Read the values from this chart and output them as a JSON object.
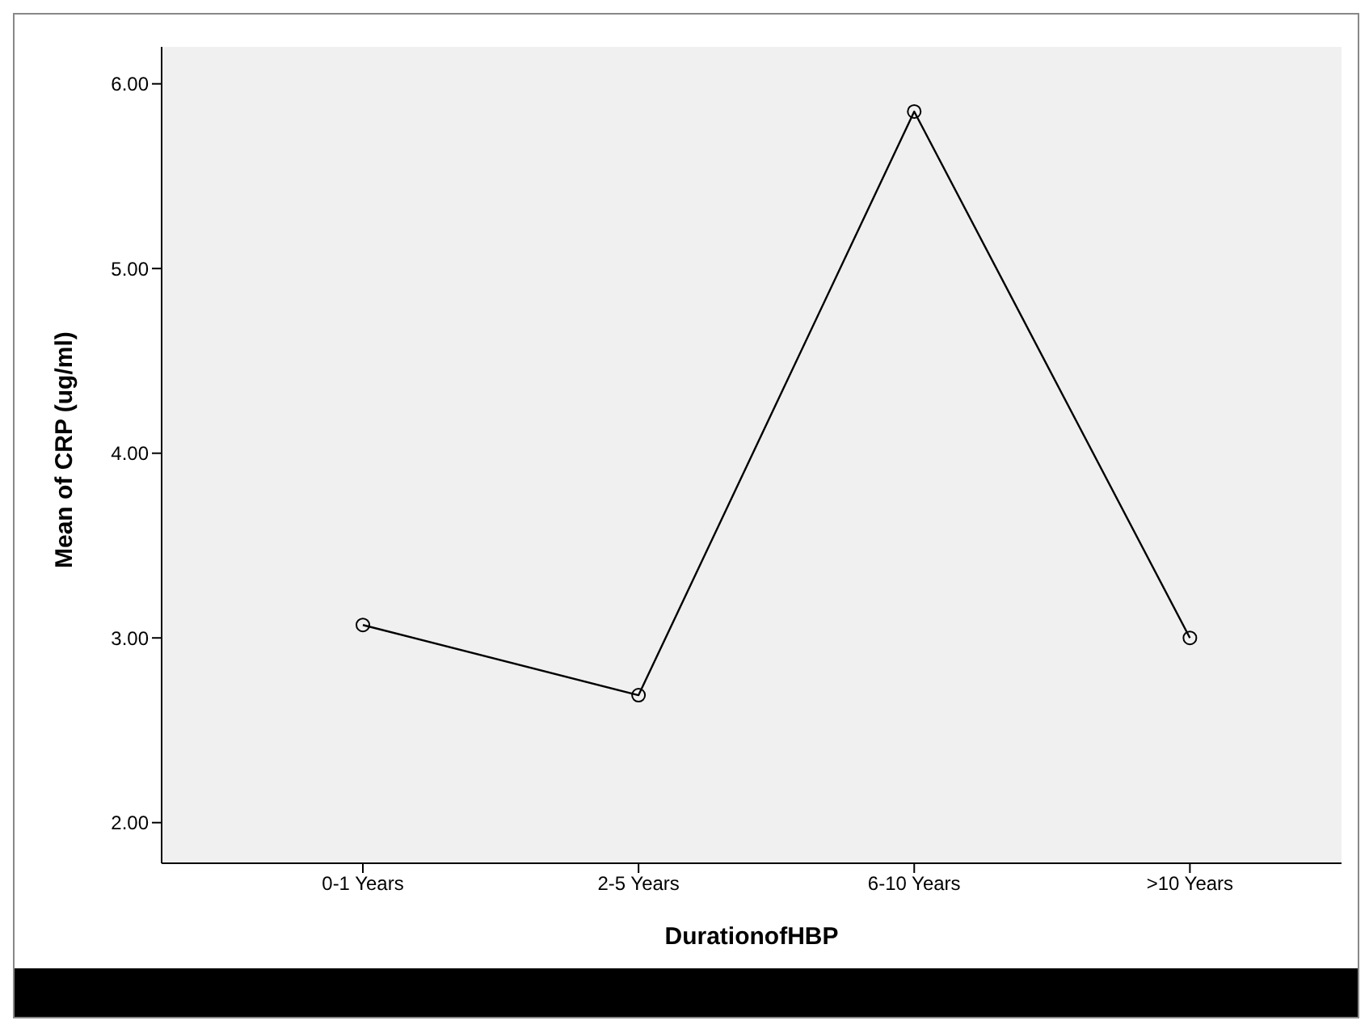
{
  "chart_data": {
    "type": "line",
    "xlabel": "DurationofHBP",
    "ylabel": "Mean of CRP (ug/ml)",
    "categories": [
      "0-1 Years",
      "2-5 Years",
      "6-10 Years",
      ">10 Years"
    ],
    "series": [
      {
        "color": "#000000",
        "values": [
          3.07,
          2.69,
          5.85,
          3.0
        ]
      }
    ],
    "ylim": [
      1.78,
      6.2
    ],
    "yticks": [
      {
        "value": 2,
        "label": "2.00"
      },
      {
        "value": 3,
        "label": "3.00"
      },
      {
        "value": 4,
        "label": "4.00"
      },
      {
        "value": 5,
        "label": "5.00"
      },
      {
        "value": 6,
        "label": "6.00"
      }
    ],
    "grid": false,
    "marker": "circle",
    "line_style": "solid",
    "legend": false
  }
}
